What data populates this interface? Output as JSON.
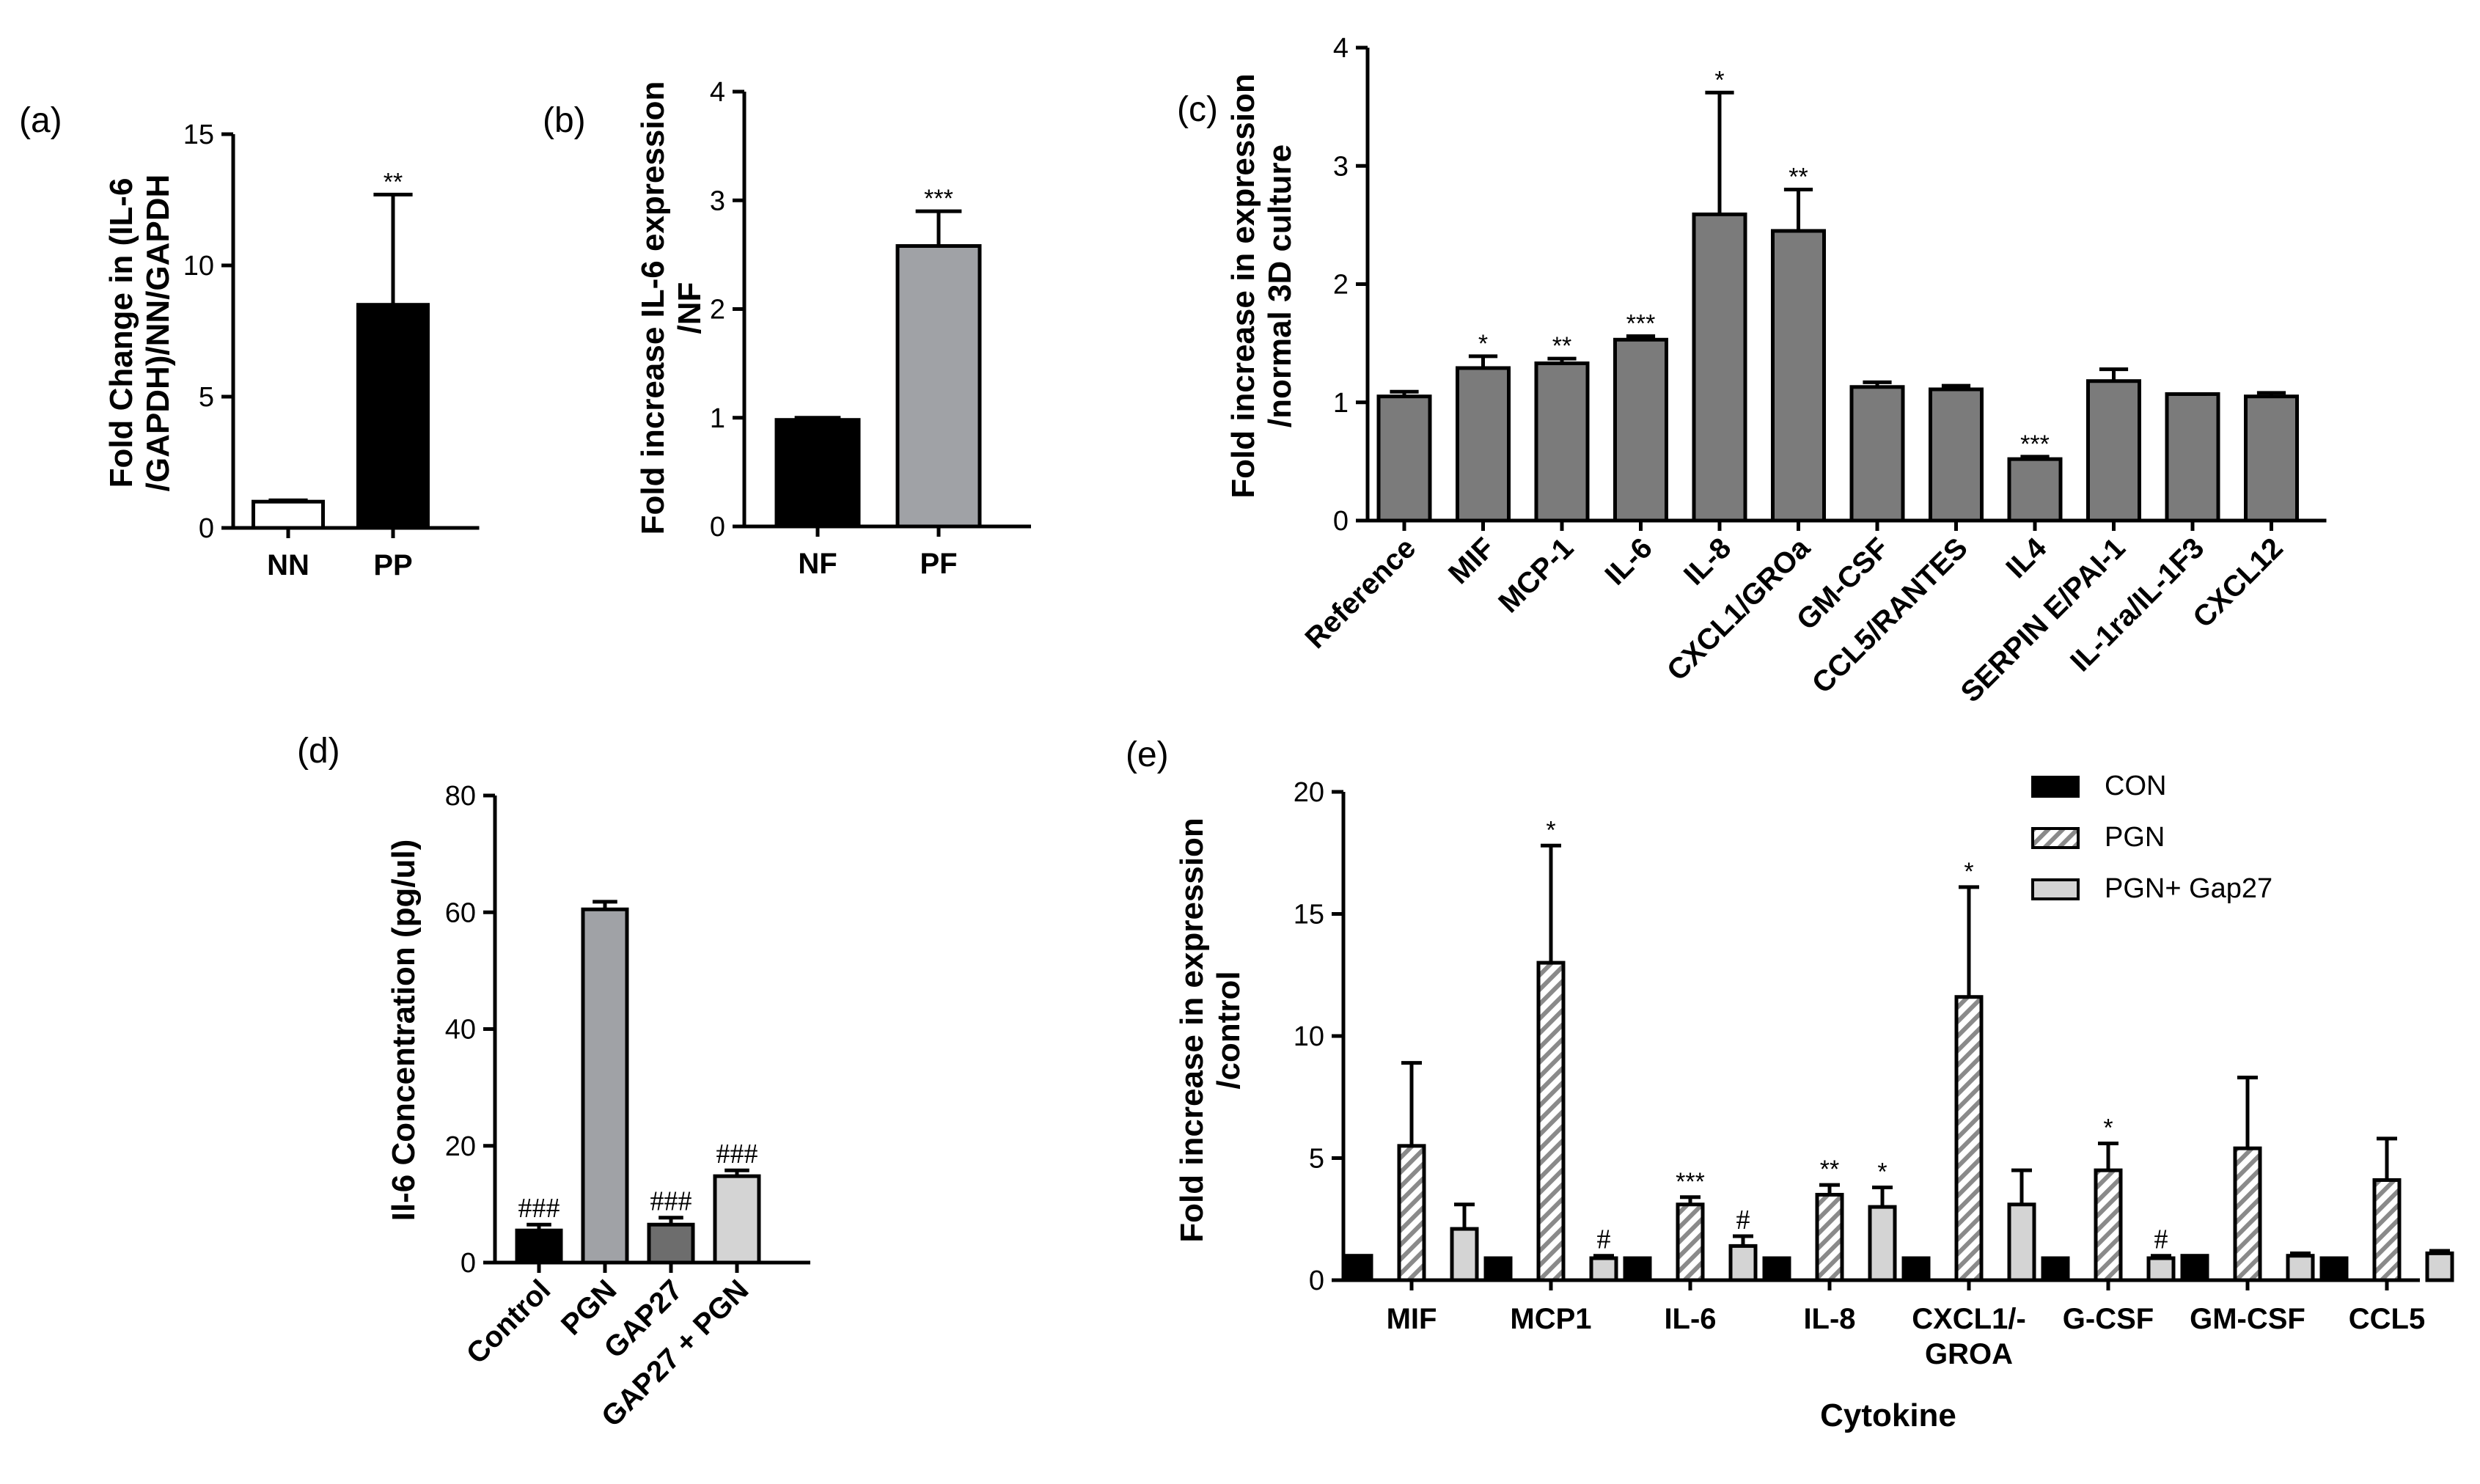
{
  "colors": {
    "black": "#000000",
    "dark_gray": "#6d6d6d",
    "mid_gray": "#a0a2a6",
    "light_gray": "#d4d4d4",
    "bar_gray": "#7b7b7b",
    "white": "#ffffff"
  },
  "chart_data": [
    {
      "panel_label": "(a)",
      "type": "bar",
      "ylabel_lines": [
        "Fold Change in (IL-6",
        "/GAPDH)/NN/GAPDH"
      ],
      "ylim": [
        0,
        15
      ],
      "ticks": [
        "0",
        "5",
        "10",
        "15"
      ],
      "categories": [
        "NN",
        "PP"
      ],
      "values": [
        1.0,
        8.5
      ],
      "errors": [
        0.05,
        4.2
      ],
      "fills": [
        "white",
        "black"
      ],
      "annotations": [
        "",
        "**"
      ]
    },
    {
      "panel_label": "(b)",
      "type": "bar",
      "ylabel_lines": [
        "Fold increase IL-6 expression",
        "/NF"
      ],
      "ylim": [
        0,
        4
      ],
      "ticks": [
        "0",
        "1",
        "2",
        "3",
        "4"
      ],
      "categories": [
        "NF",
        "PF"
      ],
      "values": [
        0.98,
        2.58
      ],
      "errors": [
        0.02,
        0.32
      ],
      "fills": [
        "black",
        "mid_gray"
      ],
      "annotations": [
        "",
        "***"
      ]
    },
    {
      "panel_label": "(c)",
      "type": "bar",
      "ylabel_lines": [
        "Fold increase in expression",
        "/normal 3D culture"
      ],
      "ylim": [
        0,
        4
      ],
      "ticks": [
        "0",
        "1",
        "2",
        "3",
        "4"
      ],
      "categories": [
        "Reference",
        "MIF",
        "MCP-1",
        "IL-6",
        "IL-8",
        "CXCL1/GROa",
        "GM-CSF",
        "CCL5/RANTES",
        "IL4",
        "SERPIN E/PAI-1",
        "IL-1ra/IL-1F3",
        "CXCL12"
      ],
      "values": [
        1.05,
        1.29,
        1.33,
        1.53,
        2.59,
        2.45,
        1.13,
        1.11,
        0.52,
        1.18,
        1.07,
        1.05
      ],
      "errors": [
        0.04,
        0.1,
        0.04,
        0.03,
        1.03,
        0.35,
        0.04,
        0.03,
        0.02,
        0.1,
        0.0,
        0.03
      ],
      "annotations": [
        "",
        "*",
        "**",
        "***",
        "*",
        "**",
        "",
        "",
        "***",
        "",
        "",
        ""
      ]
    },
    {
      "panel_label": "(d)",
      "type": "bar",
      "ylabel_lines": [
        "Il-6 Concentration  (pg/ul)"
      ],
      "ylim": [
        0,
        80
      ],
      "ticks": [
        "0",
        "20",
        "40",
        "60",
        "80"
      ],
      "categories": [
        "Control",
        "PGN",
        "GAP27",
        "GAP27 + PGN"
      ],
      "values": [
        5.5,
        60.5,
        6.5,
        14.8
      ],
      "errors": [
        1.0,
        1.3,
        1.2,
        1.0
      ],
      "fills": [
        "black",
        "mid_gray",
        "dark_gray",
        "light_gray"
      ],
      "annotations": [
        "###",
        "",
        "###",
        "###"
      ]
    },
    {
      "panel_label": "(e)",
      "type": "bar",
      "ylabel_lines": [
        "Fold increase in expression",
        "/control"
      ],
      "xlabel": "Cytokine",
      "ylim": [
        0,
        20
      ],
      "ticks": [
        "0",
        "5",
        "10",
        "15",
        "20"
      ],
      "categories": [
        [
          "MIF"
        ],
        [
          "MCP1"
        ],
        [
          "IL-6"
        ],
        [
          "IL-8"
        ],
        [
          "CXCL1/-",
          "GROA"
        ],
        [
          "G-CSF"
        ],
        [
          "GM-CSF"
        ],
        [
          "CCL5"
        ]
      ],
      "series": [
        {
          "name": " CON",
          "values": [
            1.0,
            0.9,
            0.9,
            0.9,
            0.9,
            0.9,
            1.0,
            0.9
          ],
          "errors": [
            0,
            0,
            0,
            0,
            0,
            0,
            0,
            0
          ],
          "annotations": [
            "",
            "",
            "",
            "",
            "",
            "",
            "",
            ""
          ]
        },
        {
          "name": "PGN",
          "values": [
            5.5,
            13.0,
            3.1,
            3.5,
            11.6,
            4.5,
            5.4,
            4.1
          ],
          "errors": [
            3.4,
            4.8,
            0.3,
            0.4,
            4.5,
            1.1,
            2.9,
            1.7
          ],
          "annotations": [
            "",
            "*",
            "***",
            "**",
            "*",
            "*",
            "",
            ""
          ]
        },
        {
          "name": "PGN+ Gap27",
          "values": [
            2.1,
            0.9,
            1.4,
            3.0,
            3.1,
            0.9,
            1.0,
            1.1
          ],
          "errors": [
            1.0,
            0.1,
            0.4,
            0.8,
            1.4,
            0.1,
            0.1,
            0.1
          ],
          "annotations": [
            "",
            "#",
            "#",
            "*",
            "",
            "#",
            "",
            ""
          ]
        }
      ]
    }
  ]
}
